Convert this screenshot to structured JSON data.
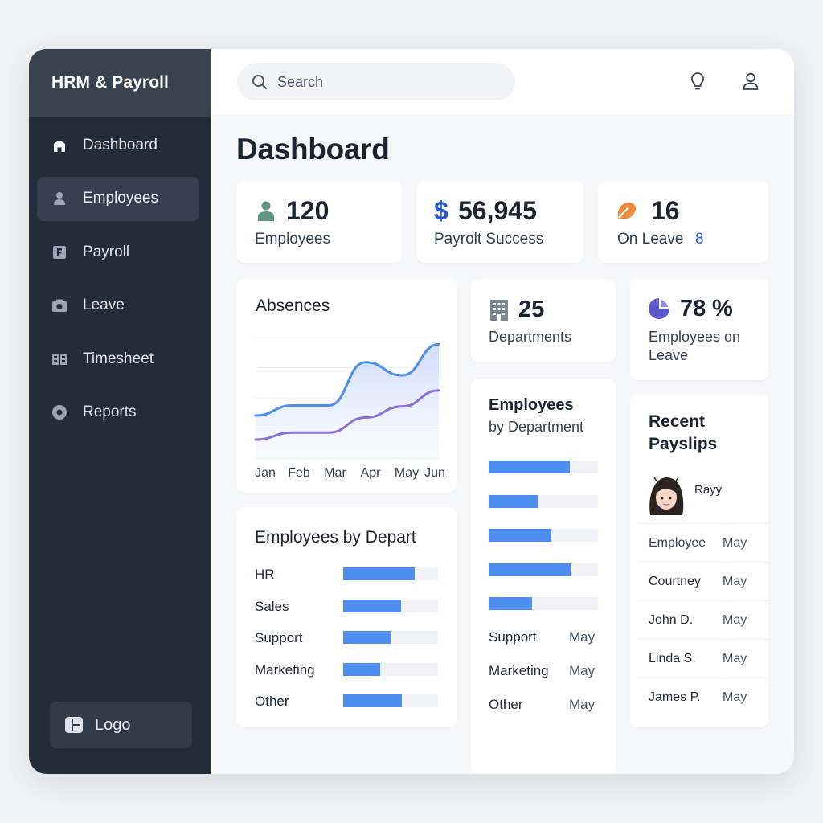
{
  "app": {
    "title": "HRM & Payroll"
  },
  "sidebar": {
    "items": [
      {
        "label": "Dashboard",
        "icon": "home-icon"
      },
      {
        "label": "Employees",
        "icon": "user-icon"
      },
      {
        "label": "Payroll",
        "icon": "document-icon"
      },
      {
        "label": "Leave",
        "icon": "camera-icon"
      },
      {
        "label": "Timesheet",
        "icon": "grid-icon"
      },
      {
        "label": "Reports",
        "icon": "disc-icon"
      }
    ],
    "active_index": 1,
    "logo_label": "Logo"
  },
  "header": {
    "search_placeholder": "Search",
    "icons": [
      "lightbulb-icon",
      "user-icon"
    ]
  },
  "page": {
    "title": "Dashboard"
  },
  "stats": {
    "employees": {
      "value": "120",
      "label": "Employees"
    },
    "payroll": {
      "currency": "$",
      "value": "56,945",
      "label": "Payrolt Success"
    },
    "leave": {
      "value": "16",
      "label": "On Leave",
      "extra": "8"
    },
    "departments": {
      "value": "25",
      "label": "Departments"
    },
    "percent": {
      "value": "78",
      "unit": "%",
      "label": "Employees on Leave"
    }
  },
  "absences": {
    "title": "Absences",
    "chart_data": {
      "type": "area",
      "categories": [
        "Jan",
        "Feb",
        "Mar",
        "Apr",
        "May",
        "Jun"
      ],
      "series": [
        {
          "values": [
            32,
            42,
            42,
            85,
            72,
            103
          ]
        },
        {
          "values": [
            8,
            15,
            15,
            30,
            41,
            57
          ]
        }
      ],
      "ylim": [
        0,
        120
      ],
      "grid": true
    }
  },
  "dept_chart_left": {
    "title": "Employees by Depart",
    "chart_data": {
      "type": "bar",
      "categories": [
        "HR",
        "Sales",
        "Support",
        "Marketing",
        "Other"
      ],
      "values": [
        75,
        61,
        50,
        39,
        62
      ],
      "xlim": [
        0,
        100
      ]
    }
  },
  "dept_chart_mid": {
    "title_line1": "Employees",
    "title_line2": "by Department",
    "chart_data": {
      "type": "bar",
      "values": [
        74,
        45,
        57,
        75,
        40
      ],
      "xlim": [
        0,
        100
      ]
    },
    "rows": [
      {
        "name": "Support",
        "month": "May"
      },
      {
        "name": "Marketing",
        "month": "May"
      },
      {
        "name": "Other",
        "month": "May"
      }
    ]
  },
  "payslips": {
    "title_line1": "Recent",
    "title_line2": "Payslips",
    "user_name": "Rayy",
    "header": {
      "name": "Employee",
      "month": "May"
    },
    "rows": [
      {
        "name": "Courtney",
        "month": "May"
      },
      {
        "name": "John D.",
        "month": "May"
      },
      {
        "name": "Linda S.",
        "month": "May"
      },
      {
        "name": "James P.",
        "month": "May"
      }
    ]
  },
  "colors": {
    "accent_blue": "#4d8ef0",
    "line_purple": "#8b6fd9",
    "sidebar": "#232d39",
    "dollar": "#2457d6",
    "orange": "#ef8a3a"
  }
}
